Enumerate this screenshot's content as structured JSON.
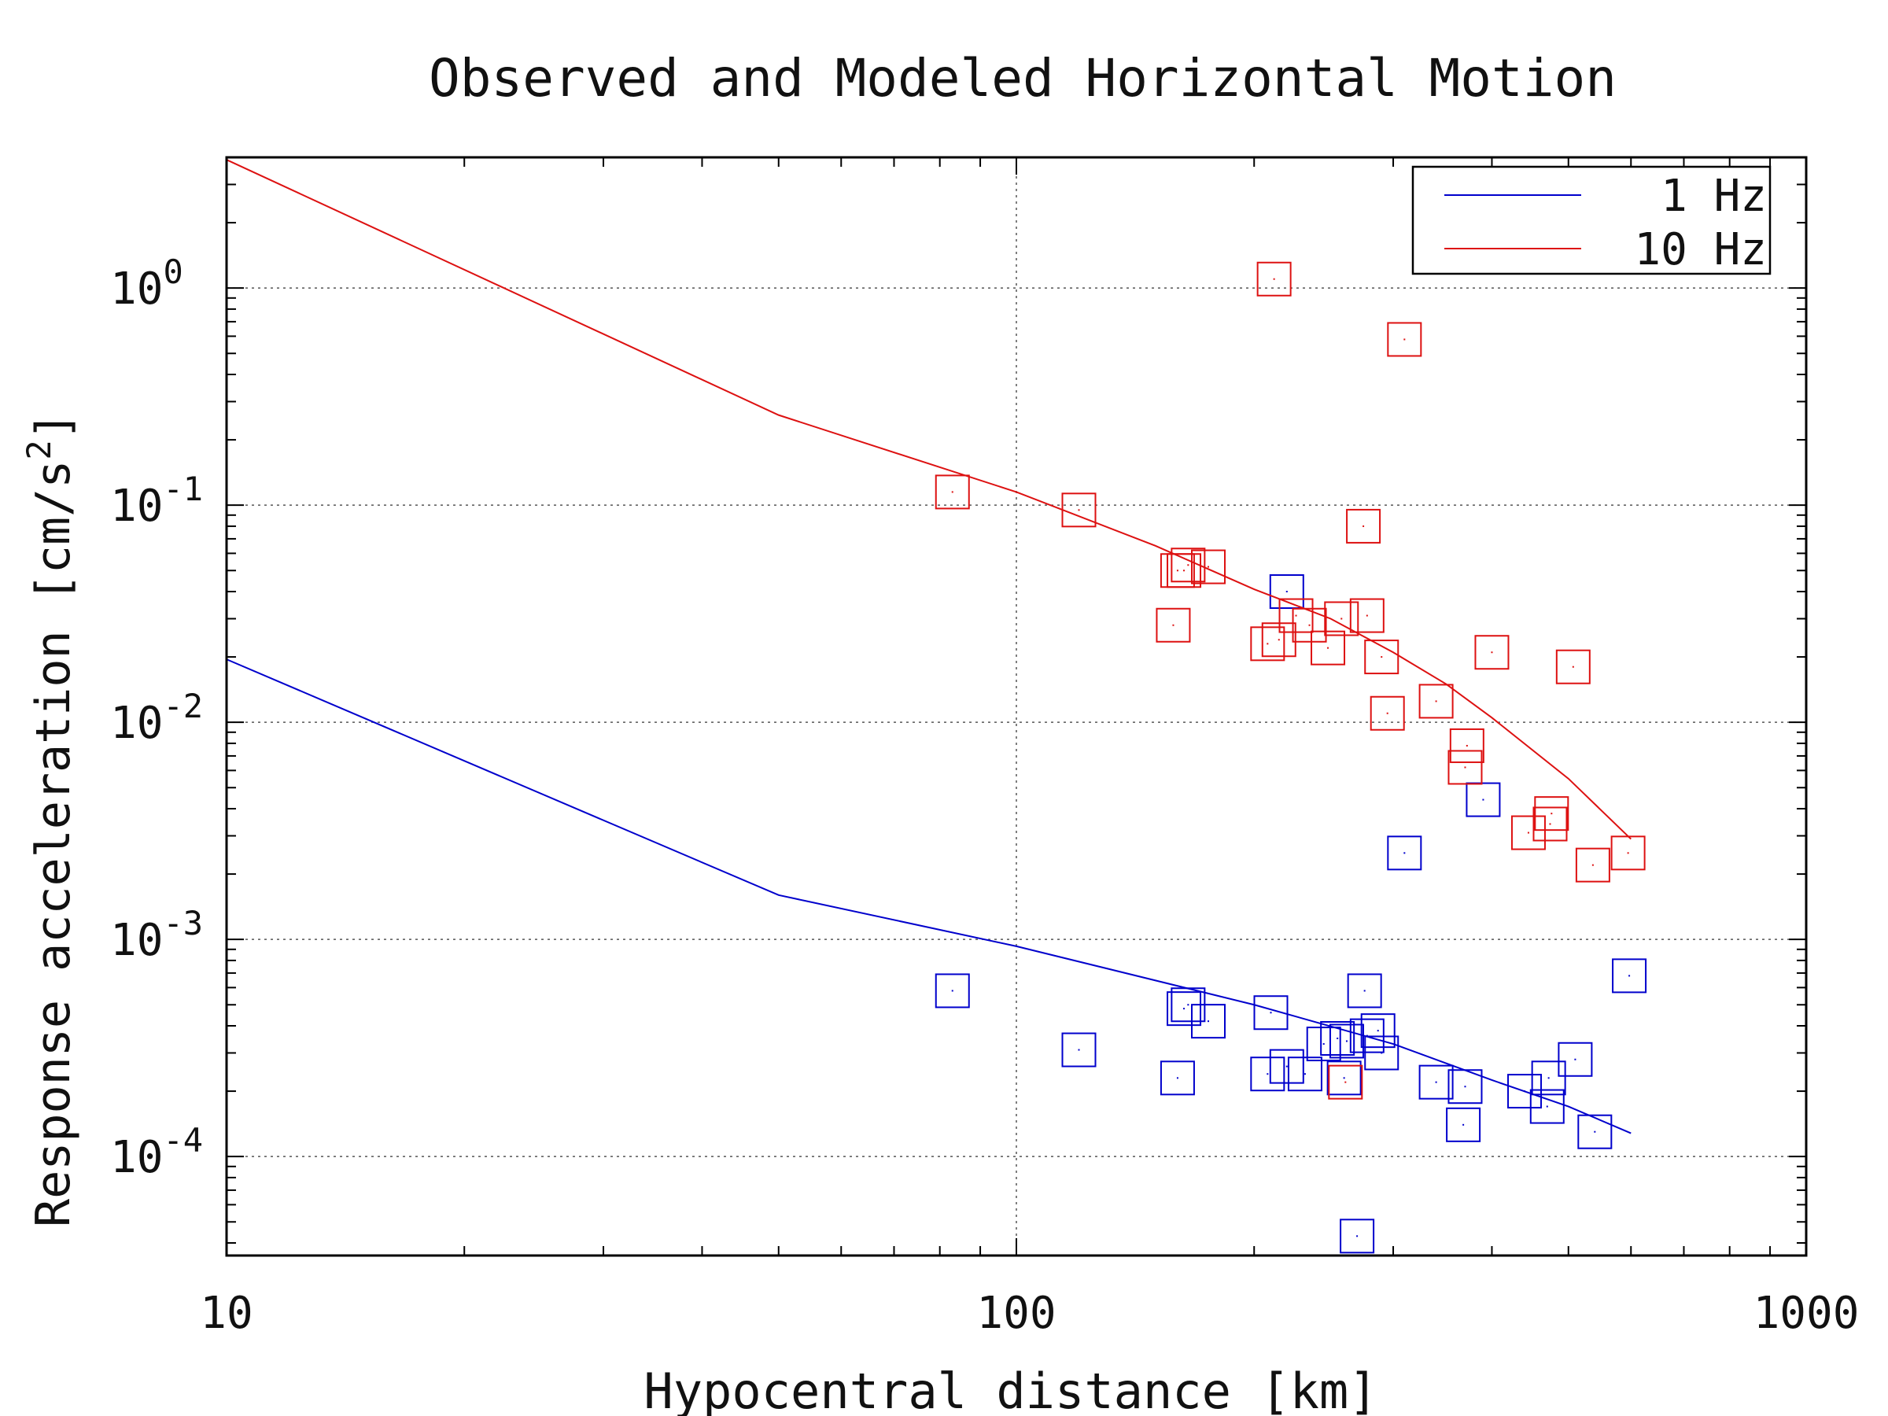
{
  "chart_data": {
    "type": "scatter",
    "title": "Observed and Modeled Horizontal Motion",
    "xlabel": "Hypocentral distance [km]",
    "ylabel": "Response acceleration [cm/s²]",
    "ylabel_base": "Response acceleration [cm/s",
    "ylabel_exp": "2",
    "ylabel_tail": "]",
    "xscale": "log",
    "yscale": "log",
    "xlim": [
      10,
      1000
    ],
    "ylim": [
      3.5e-05,
      4.0
    ],
    "grid": true,
    "legend_position": "top-right",
    "x_ticks": [
      {
        "value": 10,
        "label": "10"
      },
      {
        "value": 100,
        "label": "100"
      },
      {
        "value": 1000,
        "label": "1000"
      }
    ],
    "y_ticks": [
      {
        "value": 1,
        "base": "10",
        "exp": "0"
      },
      {
        "value": 0.1,
        "base": "10",
        "exp": "-1"
      },
      {
        "value": 0.01,
        "base": "10",
        "exp": "-2"
      },
      {
        "value": 0.001,
        "base": "10",
        "exp": "-3"
      },
      {
        "value": 0.0001,
        "base": "10",
        "exp": "-4"
      }
    ],
    "series": [
      {
        "name": "1 Hz",
        "color": "#0000cc",
        "model": {
          "x": [
            10,
            50,
            100,
            200,
            300,
            400,
            500,
            600
          ],
          "y": [
            0.0195,
            0.0016,
            0.00093,
            0.0005,
            0.00033,
            0.000225,
            0.00017,
            0.000128
          ]
        },
        "observed": {
          "x": [
            83,
            120,
            160,
            163,
            165,
            175,
            208,
            210,
            220,
            232,
            245,
            255,
            262,
            270,
            276,
            278,
            287,
            290,
            340,
            368,
            370,
            440,
            470,
            472,
            510,
            540,
            597,
            220,
            260,
            310,
            390
          ],
          "y": [
            0.00058,
            0.00031,
            0.00023,
            0.00048,
            0.0005,
            0.00042,
            0.00024,
            0.00046,
            0.00026,
            0.00024,
            0.00033,
            0.00035,
            0.00034,
            4.3e-05,
            0.00058,
            0.00036,
            0.00038,
            0.0003,
            0.00022,
            0.00014,
            0.00021,
            0.0002,
            0.00017,
            0.00023,
            0.00028,
            0.00013,
            0.00068,
            0.04,
            0.00023,
            0.0025,
            0.0044
          ]
        }
      },
      {
        "name": "10 Hz",
        "color": "#dd1111",
        "model": {
          "x": [
            10,
            50,
            100,
            150,
            200,
            250,
            300,
            350,
            400,
            500,
            600
          ],
          "y": [
            3.9,
            0.26,
            0.115,
            0.065,
            0.041,
            0.03,
            0.021,
            0.015,
            0.0105,
            0.0055,
            0.0029
          ]
        },
        "observed": {
          "x": [
            83,
            120,
            158,
            160,
            163,
            165,
            175,
            208,
            212,
            215,
            226,
            235,
            248,
            258,
            275,
            278,
            290,
            295,
            310,
            340,
            370,
            372,
            400,
            445,
            474,
            476,
            507,
            537,
            595,
            261
          ],
          "y": [
            0.115,
            0.095,
            0.028,
            0.05,
            0.05,
            0.053,
            0.052,
            0.023,
            1.1,
            0.024,
            0.031,
            0.028,
            0.022,
            0.03,
            0.08,
            0.031,
            0.02,
            0.011,
            0.58,
            0.0125,
            0.0062,
            0.0078,
            0.021,
            0.0031,
            0.0034,
            0.0038,
            0.018,
            0.0022,
            0.0025,
            0.00022
          ]
        }
      }
    ]
  }
}
